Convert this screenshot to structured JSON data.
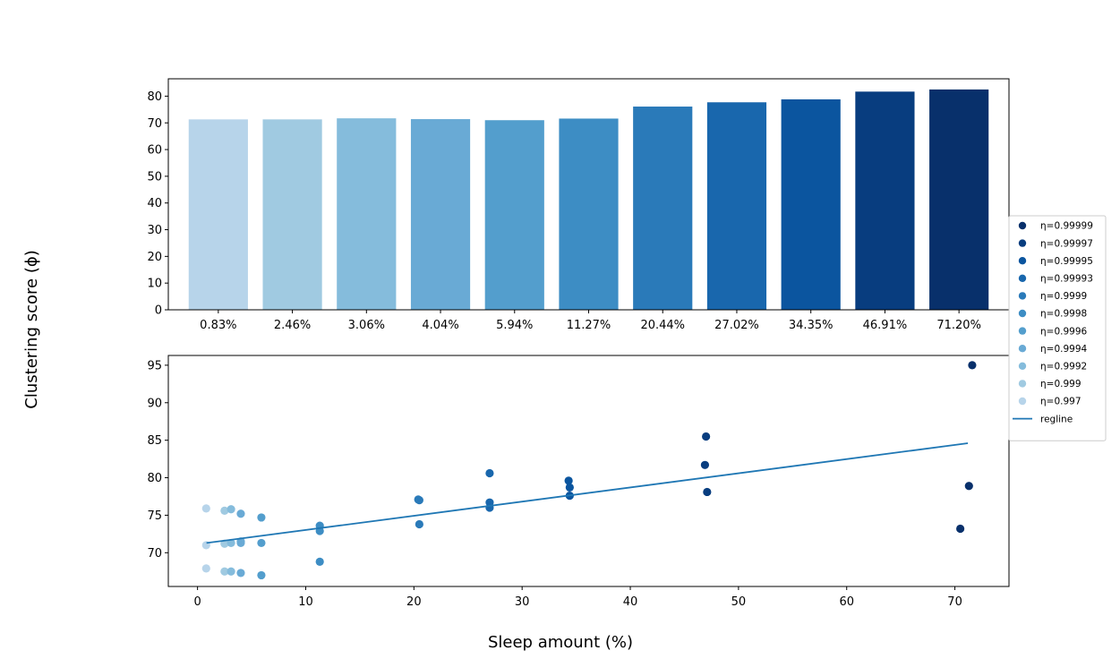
{
  "figure": {
    "ylabel": "Clustering score (ϕ)",
    "xlabel": "Sleep amount (%)"
  },
  "chart_data": [
    {
      "type": "bar",
      "categories": [
        "0.83%",
        "2.46%",
        "3.06%",
        "4.04%",
        "5.94%",
        "11.27%",
        "20.44%",
        "27.02%",
        "34.35%",
        "46.91%",
        "71.20%"
      ],
      "values": [
        71.3,
        71.3,
        71.7,
        71.4,
        71.0,
        71.6,
        76.1,
        77.7,
        78.8,
        81.7,
        82.5
      ],
      "colors": [
        "#b7d4ea",
        "#a0cae1",
        "#85bcdc",
        "#69aad5",
        "#539ecd",
        "#3d8dc4",
        "#2a7ab9",
        "#1967ad",
        "#0b559f",
        "#083d7f",
        "#08306b"
      ],
      "ylim": [
        0,
        86.5
      ],
      "yticks": [
        0,
        10,
        20,
        30,
        40,
        50,
        60,
        70,
        80
      ]
    },
    {
      "type": "scatter",
      "xlim": [
        -2.7,
        75
      ],
      "ylim": [
        65.5,
        96.3
      ],
      "xticks": [
        0,
        10,
        20,
        30,
        40,
        50,
        60,
        70
      ],
      "yticks": [
        70,
        75,
        80,
        85,
        90,
        95
      ],
      "series": [
        {
          "name": "η=0.99999",
          "color": "#08306b",
          "points": [
            [
              70.5,
              73.2
            ],
            [
              71.3,
              78.9
            ],
            [
              71.6,
              95.0
            ]
          ]
        },
        {
          "name": "η=0.99997",
          "color": "#083d7f",
          "points": [
            [
              46.9,
              81.7
            ],
            [
              47.0,
              85.5
            ],
            [
              47.1,
              78.1
            ]
          ]
        },
        {
          "name": "η=0.99995",
          "color": "#0b559f",
          "points": [
            [
              34.3,
              79.6
            ],
            [
              34.4,
              78.7
            ],
            [
              34.4,
              77.6
            ]
          ]
        },
        {
          "name": "η=0.99993",
          "color": "#1967ad",
          "points": [
            [
              27.0,
              80.6
            ],
            [
              27.0,
              76.7
            ],
            [
              27.0,
              76.0
            ]
          ]
        },
        {
          "name": "η=0.9999",
          "color": "#2a7ab9",
          "points": [
            [
              20.4,
              77.1
            ],
            [
              20.5,
              77.0
            ],
            [
              20.5,
              73.8
            ]
          ]
        },
        {
          "name": "η=0.9998",
          "color": "#3d8dc4",
          "points": [
            [
              11.3,
              73.6
            ],
            [
              11.3,
              72.9
            ],
            [
              11.3,
              68.8
            ]
          ]
        },
        {
          "name": "η=0.9996",
          "color": "#539ecd",
          "points": [
            [
              5.9,
              74.7
            ],
            [
              5.9,
              71.3
            ],
            [
              5.9,
              67.0
            ]
          ]
        },
        {
          "name": "η=0.9994",
          "color": "#69aad5",
          "points": [
            [
              4.0,
              75.2
            ],
            [
              4.0,
              71.5
            ],
            [
              4.0,
              71.3
            ],
            [
              4.0,
              67.3
            ]
          ]
        },
        {
          "name": "η=0.9992",
          "color": "#85bcdc",
          "points": [
            [
              3.1,
              75.8
            ],
            [
              3.1,
              71.3
            ],
            [
              3.1,
              67.5
            ]
          ]
        },
        {
          "name": "η=0.999",
          "color": "#a0cae1",
          "points": [
            [
              2.5,
              75.6
            ],
            [
              2.5,
              71.2
            ],
            [
              2.5,
              67.5
            ]
          ]
        },
        {
          "name": "η=0.997",
          "color": "#b7d4ea",
          "points": [
            [
              0.8,
              75.9
            ],
            [
              0.8,
              71.0
            ],
            [
              0.8,
              67.9
            ]
          ]
        }
      ],
      "regline": {
        "name": "regline",
        "color": "#1f77b4",
        "x": [
          0.83,
          71.2
        ],
        "y": [
          71.3,
          84.6
        ]
      }
    }
  ]
}
